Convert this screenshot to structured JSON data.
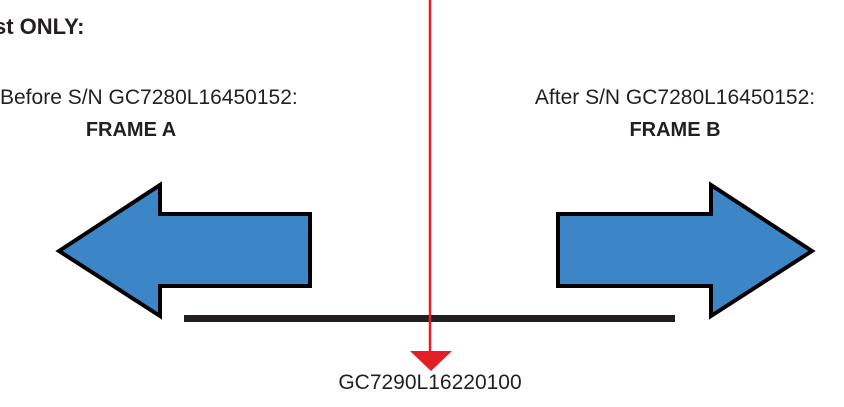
{
  "header": {
    "text": "st ONLY:"
  },
  "before": {
    "line1": "Before S/N GC7280L16450152:",
    "frame": "FRAME A"
  },
  "after": {
    "line1": "After S/N GC7280L16450152:",
    "frame": "FRAME B"
  },
  "divider": {
    "serial": "GC7290L16220100"
  },
  "colors": {
    "arrow_fill": "#3c86c8",
    "arrow_stroke": "#000000",
    "divider_line": "#e31e25",
    "timeline_bar": "#231f20"
  }
}
